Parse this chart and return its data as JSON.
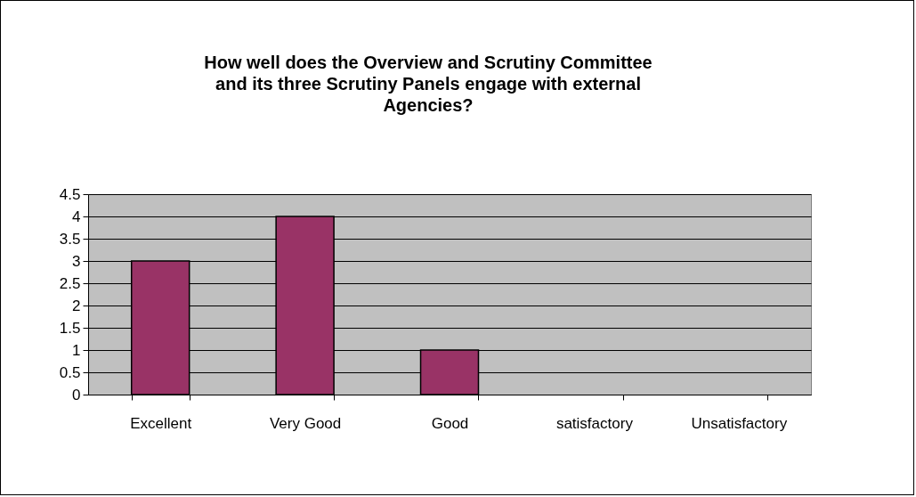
{
  "chart_data": {
    "type": "bar",
    "title": "How well does the Overview and Scrutiny Committee and its three Scrutiny Panels engage with external Agencies?",
    "categories": [
      "Excellent",
      "Very Good",
      "Good",
      "satisfactory",
      "Unsatisfactory"
    ],
    "values": [
      3,
      4,
      1,
      0,
      0
    ],
    "color": "#993366",
    "ylim": [
      0,
      4.5
    ],
    "yticks": [
      0,
      0.5,
      1,
      1.5,
      2,
      2.5,
      3,
      3.5,
      4,
      4.5
    ],
    "grid": "y"
  }
}
